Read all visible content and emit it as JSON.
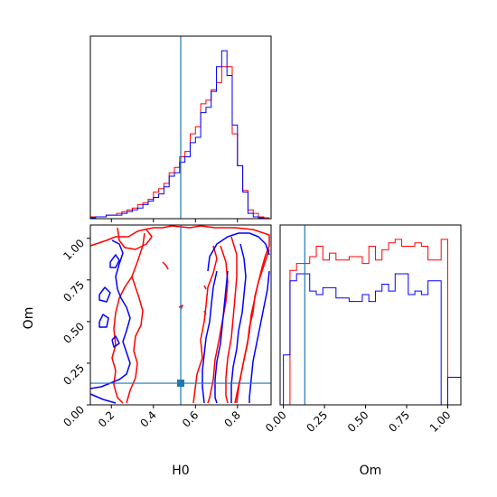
{
  "chart_data": {
    "type": "corner",
    "parameters": [
      "H0",
      "Om"
    ],
    "truths": {
      "H0": 0.53,
      "Om": 0.13
    },
    "series_colors": {
      "red": "#ff0000",
      "blue": "#0000ff",
      "truth": "#1f77b4"
    },
    "grid": false,
    "panels": [
      {
        "id": "hist_H0",
        "type": "histogram",
        "xlim": [
          0.1,
          0.96
        ],
        "x_ticks": [
          0.2,
          0.4,
          0.6,
          0.8
        ],
        "tick_labels_shown": false,
        "bin_edges": [
          0.1,
          0.125,
          0.15,
          0.175,
          0.2,
          0.225,
          0.25,
          0.275,
          0.3,
          0.325,
          0.35,
          0.375,
          0.4,
          0.425,
          0.45,
          0.475,
          0.5,
          0.525,
          0.55,
          0.575,
          0.6,
          0.625,
          0.65,
          0.675,
          0.7,
          0.725,
          0.75,
          0.775,
          0.8,
          0.825,
          0.85,
          0.875,
          0.9,
          0.925,
          0.95
        ],
        "series": [
          {
            "color": "red",
            "counts": [
              0.01,
              0.01,
              0.01,
              0.02,
              0.02,
              0.03,
              0.04,
              0.05,
              0.06,
              0.08,
              0.09,
              0.11,
              0.15,
              0.17,
              0.2,
              0.26,
              0.29,
              0.35,
              0.38,
              0.48,
              0.52,
              0.65,
              0.67,
              0.73,
              0.77,
              0.86,
              0.86,
              0.48,
              0.3,
              0.16,
              0.05,
              0.03,
              0.01,
              0.005
            ]
          },
          {
            "color": "blue",
            "counts": [
              0.005,
              0.01,
              0.01,
              0.02,
              0.02,
              0.02,
              0.03,
              0.04,
              0.05,
              0.06,
              0.08,
              0.1,
              0.12,
              0.14,
              0.18,
              0.24,
              0.26,
              0.32,
              0.35,
              0.43,
              0.46,
              0.6,
              0.63,
              0.72,
              0.86,
              0.95,
              0.81,
              0.53,
              0.3,
              0.15,
              0.03,
              0.01,
              0.005,
              0.0
            ]
          }
        ]
      },
      {
        "id": "contour_H0_Om",
        "type": "contour",
        "xlim": [
          0.1,
          0.96
        ],
        "ylim": [
          0.0,
          1.08
        ],
        "x_ticks": [
          0.2,
          0.4,
          0.6,
          0.8
        ],
        "x_tick_labels": [
          "0.2",
          "0.4",
          "0.6",
          "0.8"
        ],
        "y_ticks": [
          0.0,
          0.25,
          0.5,
          0.75,
          1.0
        ],
        "y_tick_labels": [
          "0.00",
          "0.25",
          "0.50",
          "0.75",
          "1.00"
        ],
        "xlabel": "H0",
        "ylabel": "Om"
      },
      {
        "id": "hist_Om",
        "type": "histogram",
        "xlim": [
          -0.02,
          1.08
        ],
        "x_ticks": [
          0.0,
          0.25,
          0.5,
          0.75,
          1.0
        ],
        "x_tick_labels": [
          "0.00",
          "0.25",
          "0.50",
          "0.75",
          "1.00"
        ],
        "xlabel": "Om",
        "bin_edges": [
          0.0,
          0.04,
          0.08,
          0.12,
          0.16,
          0.2,
          0.24,
          0.28,
          0.32,
          0.36,
          0.4,
          0.44,
          0.48,
          0.52,
          0.56,
          0.6,
          0.64,
          0.68,
          0.72,
          0.76,
          0.8,
          0.84,
          0.88,
          0.92,
          0.96,
          1.0,
          1.04,
          1.08
        ],
        "series": [
          {
            "color": "red",
            "counts": [
              0.0,
              0.78,
              0.82,
              0.82,
              0.86,
              0.92,
              0.84,
              0.88,
              0.84,
              0.84,
              0.86,
              0.86,
              0.82,
              0.92,
              0.84,
              0.9,
              0.94,
              0.96,
              0.92,
              0.92,
              0.94,
              0.92,
              0.84,
              0.84,
              0.96,
              0.0,
              0.0
            ]
          },
          {
            "color": "blue",
            "counts": [
              0.29,
              0.72,
              0.76,
              0.76,
              0.66,
              0.64,
              0.68,
              0.68,
              0.62,
              0.62,
              0.6,
              0.6,
              0.64,
              0.6,
              0.66,
              0.7,
              0.66,
              0.76,
              0.76,
              0.64,
              0.66,
              0.64,
              0.72,
              0.72,
              0.0,
              0.16,
              0.16
            ]
          }
        ]
      }
    ]
  }
}
